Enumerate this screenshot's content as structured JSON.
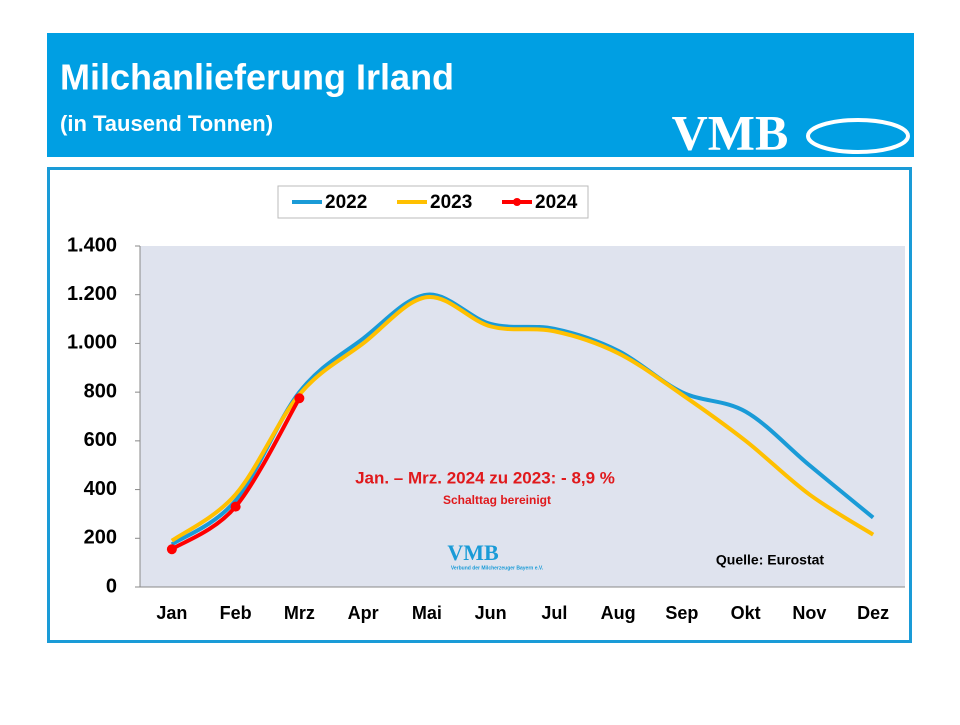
{
  "chart_data": {
    "type": "line",
    "title": "Milchanlieferung Irland",
    "subtitle": "(in Tausend Tonnen)",
    "logo": {
      "text": "VMB",
      "subtext": "Verbund der Milcherzeuger Bayern e.V."
    },
    "categories": [
      "Jan",
      "Feb",
      "Mrz",
      "Apr",
      "Mai",
      "Jun",
      "Jul",
      "Aug",
      "Sep",
      "Okt",
      "Nov",
      "Dez"
    ],
    "series": [
      {
        "name": "2022",
        "color": "#1a9bd7",
        "values": [
          175,
          355,
          800,
          1020,
          1200,
          1080,
          1060,
          970,
          800,
          720,
          500,
          285
        ]
      },
      {
        "name": "2023",
        "color": "#ffc000",
        "values": [
          190,
          380,
          790,
          1000,
          1190,
          1070,
          1050,
          960,
          790,
          600,
          380,
          215
        ]
      },
      {
        "name": "2024",
        "color": "#ff0000",
        "values": [
          155,
          330,
          775,
          null,
          null,
          null,
          null,
          null,
          null,
          null,
          null,
          null
        ],
        "markers": true
      }
    ],
    "ylim": [
      0,
      1400
    ],
    "yticks": [
      0,
      200,
      400,
      600,
      800,
      {
        "value": 1000,
        "label": "1.000"
      },
      {
        "value": 1200,
        "label": "1.200"
      },
      {
        "value": 1400,
        "label": "1.400"
      }
    ],
    "annotations": [
      "Jan. – Mrz. 2024 zu 2023: - 8,9 %",
      "Schalttag bereinigt"
    ],
    "source": "Quelle: Eurostat"
  }
}
